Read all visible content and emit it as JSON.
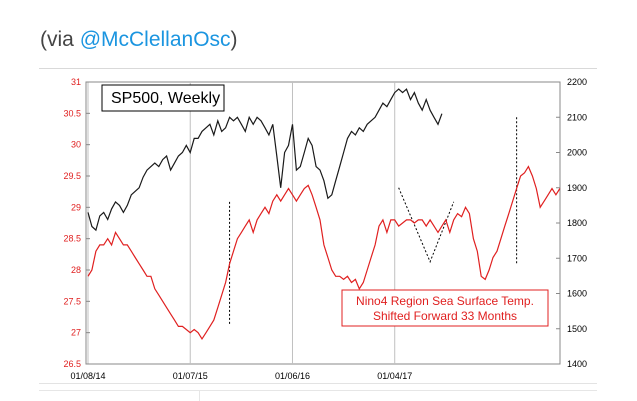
{
  "caption": {
    "prefix": "(via ",
    "handle": "@McClellanOsc",
    "suffix": ")"
  },
  "colors": {
    "sp500": "#1a1a1a",
    "nino": "#e02020",
    "grid": "#c0c0c0",
    "handle": "#1b95e0"
  },
  "chart_data": {
    "type": "line",
    "title": "SP500, Weekly",
    "annotation": [
      "Nino4 Region Sea Surface Temp.",
      "Shifted Forward 33 Months"
    ],
    "x_ticks": [
      "01/08/14",
      "01/07/15",
      "01/06/16",
      "01/04/17"
    ],
    "x_range": [
      0,
      120
    ],
    "x_tick_positions": [
      0,
      26,
      52,
      78
    ],
    "y_left": {
      "ticks": [
        "31",
        "30.5",
        "30",
        "29.5",
        "29",
        "28.5",
        "28",
        "27.5",
        "27",
        "26.5"
      ],
      "range": [
        26.5,
        31
      ]
    },
    "y_right": {
      "ticks": [
        "2200",
        "2100",
        "2000",
        "1900",
        "1800",
        "1700",
        "1600",
        "1500",
        "1400"
      ],
      "range": [
        1400,
        2200
      ]
    },
    "series": [
      {
        "name": "SP500, Weekly",
        "axis": "right",
        "color": "#1a1a1a",
        "points": [
          [
            0,
            1830
          ],
          [
            1,
            1790
          ],
          [
            2,
            1780
          ],
          [
            3,
            1820
          ],
          [
            4,
            1830
          ],
          [
            5,
            1810
          ],
          [
            6,
            1840
          ],
          [
            7,
            1860
          ],
          [
            8,
            1850
          ],
          [
            9,
            1830
          ],
          [
            10,
            1850
          ],
          [
            11,
            1880
          ],
          [
            12,
            1890
          ],
          [
            13,
            1900
          ],
          [
            14,
            1930
          ],
          [
            15,
            1950
          ],
          [
            16,
            1960
          ],
          [
            17,
            1970
          ],
          [
            18,
            1960
          ],
          [
            19,
            1980
          ],
          [
            20,
            1990
          ],
          [
            21,
            1950
          ],
          [
            22,
            1970
          ],
          [
            23,
            1990
          ],
          [
            24,
            2000
          ],
          [
            25,
            2020
          ],
          [
            26,
            2000
          ],
          [
            27,
            2040
          ],
          [
            28,
            2040
          ],
          [
            29,
            2060
          ],
          [
            30,
            2070
          ],
          [
            31,
            2080
          ],
          [
            32,
            2050
          ],
          [
            33,
            2090
          ],
          [
            34,
            2060
          ],
          [
            35,
            2070
          ],
          [
            36,
            2100
          ],
          [
            37,
            2090
          ],
          [
            38,
            2100
          ],
          [
            39,
            2080
          ],
          [
            40,
            2060
          ],
          [
            41,
            2100
          ],
          [
            42,
            2080
          ],
          [
            43,
            2100
          ],
          [
            44,
            2090
          ],
          [
            45,
            2070
          ],
          [
            46,
            2050
          ],
          [
            47,
            2080
          ],
          [
            48,
            1990
          ],
          [
            49,
            1900
          ],
          [
            50,
            2000
          ],
          [
            51,
            2020
          ],
          [
            52,
            2080
          ],
          [
            53,
            1950
          ],
          [
            54,
            1960
          ],
          [
            55,
            2000
          ],
          [
            56,
            2040
          ],
          [
            57,
            2020
          ],
          [
            58,
            1960
          ],
          [
            59,
            1950
          ],
          [
            60,
            1920
          ],
          [
            61,
            1870
          ],
          [
            62,
            1880
          ],
          [
            63,
            1920
          ],
          [
            64,
            1960
          ],
          [
            65,
            2000
          ],
          [
            66,
            2040
          ],
          [
            67,
            2060
          ],
          [
            68,
            2050
          ],
          [
            69,
            2070
          ],
          [
            70,
            2060
          ],
          [
            71,
            2080
          ],
          [
            72,
            2090
          ],
          [
            73,
            2100
          ],
          [
            74,
            2120
          ],
          [
            75,
            2140
          ],
          [
            76,
            2130
          ],
          [
            77,
            2150
          ],
          [
            78,
            2170
          ],
          [
            79,
            2180
          ],
          [
            80,
            2170
          ],
          [
            81,
            2180
          ],
          [
            82,
            2150
          ],
          [
            83,
            2170
          ],
          [
            84,
            2140
          ],
          [
            85,
            2120
          ],
          [
            86,
            2150
          ],
          [
            87,
            2120
          ],
          [
            88,
            2100
          ],
          [
            89,
            2080
          ],
          [
            90,
            2110
          ]
        ]
      },
      {
        "name": "Nino4 Region Sea Surface Temp.",
        "axis": "left",
        "color": "#e02020",
        "points": [
          [
            0,
            27.9
          ],
          [
            1,
            28.0
          ],
          [
            2,
            28.3
          ],
          [
            3,
            28.4
          ],
          [
            4,
            28.4
          ],
          [
            5,
            28.5
          ],
          [
            6,
            28.4
          ],
          [
            7,
            28.6
          ],
          [
            8,
            28.5
          ],
          [
            9,
            28.4
          ],
          [
            10,
            28.4
          ],
          [
            11,
            28.3
          ],
          [
            12,
            28.2
          ],
          [
            13,
            28.1
          ],
          [
            14,
            28.0
          ],
          [
            15,
            27.9
          ],
          [
            16,
            27.9
          ],
          [
            17,
            27.7
          ],
          [
            18,
            27.6
          ],
          [
            19,
            27.5
          ],
          [
            20,
            27.4
          ],
          [
            21,
            27.3
          ],
          [
            22,
            27.2
          ],
          [
            23,
            27.1
          ],
          [
            24,
            27.1
          ],
          [
            25,
            27.05
          ],
          [
            26,
            27.0
          ],
          [
            27,
            27.05
          ],
          [
            28,
            27.0
          ],
          [
            29,
            26.9
          ],
          [
            30,
            27.0
          ],
          [
            31,
            27.1
          ],
          [
            32,
            27.2
          ],
          [
            33,
            27.4
          ],
          [
            34,
            27.6
          ],
          [
            35,
            27.8
          ],
          [
            36,
            28.1
          ],
          [
            37,
            28.3
          ],
          [
            38,
            28.5
          ],
          [
            39,
            28.6
          ],
          [
            40,
            28.7
          ],
          [
            41,
            28.8
          ],
          [
            42,
            28.6
          ],
          [
            43,
            28.8
          ],
          [
            44,
            28.9
          ],
          [
            45,
            29.0
          ],
          [
            46,
            28.9
          ],
          [
            47,
            29.1
          ],
          [
            48,
            29.2
          ],
          [
            49,
            29.1
          ],
          [
            50,
            29.2
          ],
          [
            51,
            29.3
          ],
          [
            52,
            29.2
          ],
          [
            53,
            29.1
          ],
          [
            54,
            29.2
          ],
          [
            55,
            29.3
          ],
          [
            56,
            29.35
          ],
          [
            57,
            29.2
          ],
          [
            58,
            29.0
          ],
          [
            59,
            28.8
          ],
          [
            60,
            28.4
          ],
          [
            61,
            28.2
          ],
          [
            62,
            28.0
          ],
          [
            63,
            27.9
          ],
          [
            64,
            27.9
          ],
          [
            65,
            27.85
          ],
          [
            66,
            27.9
          ],
          [
            67,
            27.8
          ],
          [
            68,
            27.85
          ],
          [
            69,
            27.7
          ],
          [
            70,
            27.8
          ],
          [
            71,
            28.0
          ],
          [
            72,
            28.2
          ],
          [
            73,
            28.4
          ],
          [
            74,
            28.7
          ],
          [
            75,
            28.8
          ],
          [
            76,
            28.6
          ],
          [
            77,
            28.8
          ],
          [
            78,
            28.8
          ],
          [
            79,
            28.7
          ],
          [
            80,
            28.75
          ],
          [
            81,
            28.8
          ],
          [
            82,
            28.8
          ],
          [
            83,
            28.75
          ],
          [
            84,
            28.8
          ],
          [
            85,
            28.8
          ],
          [
            86,
            28.7
          ],
          [
            87,
            28.8
          ],
          [
            88,
            28.7
          ],
          [
            89,
            28.6
          ],
          [
            90,
            28.7
          ],
          [
            91,
            28.8
          ],
          [
            92,
            28.6
          ],
          [
            93,
            28.8
          ],
          [
            94,
            28.9
          ],
          [
            95,
            28.85
          ],
          [
            96,
            29.0
          ],
          [
            97,
            28.9
          ],
          [
            98,
            28.5
          ],
          [
            99,
            28.3
          ],
          [
            100,
            27.9
          ],
          [
            101,
            27.85
          ],
          [
            102,
            28.0
          ],
          [
            103,
            28.2
          ],
          [
            104,
            28.3
          ],
          [
            105,
            28.5
          ],
          [
            106,
            28.7
          ],
          [
            107,
            28.9
          ],
          [
            108,
            29.1
          ],
          [
            109,
            29.3
          ],
          [
            110,
            29.5
          ],
          [
            111,
            29.55
          ],
          [
            112,
            29.65
          ],
          [
            113,
            29.5
          ],
          [
            114,
            29.3
          ],
          [
            115,
            29.0
          ],
          [
            116,
            29.1
          ],
          [
            117,
            29.2
          ],
          [
            118,
            29.3
          ],
          [
            119,
            29.2
          ],
          [
            120,
            29.3
          ]
        ]
      }
    ],
    "guides": [
      {
        "style": "vertical",
        "x": 36,
        "from": 1860,
        "to": 1510
      },
      {
        "style": "vertical",
        "x": 109,
        "from": 2100,
        "to": 1680
      },
      {
        "style": "diagonal",
        "points": [
          [
            79,
            1900
          ],
          [
            87,
            1690
          ],
          [
            93,
            1860
          ]
        ]
      }
    ]
  }
}
